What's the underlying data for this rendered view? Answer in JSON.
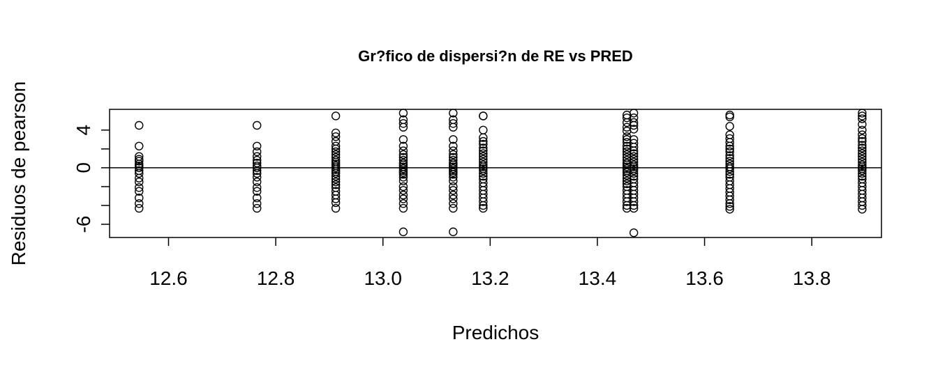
{
  "chart_data": {
    "type": "scatter",
    "title": "Gr?fico de dispersi?n de RE vs PRED",
    "xlabel": "Predichos",
    "ylabel": "Residuos de pearson",
    "xlim": [
      12.49,
      13.93
    ],
    "ylim": [
      -7.4,
      6.2
    ],
    "xticks": [
      12.6,
      12.8,
      13.0,
      13.2,
      13.4,
      13.6,
      13.8
    ],
    "xtick_labels": [
      "12.6",
      "12.8",
      "13.0",
      "13.2",
      "13.4",
      "13.6",
      "13.8"
    ],
    "yticks": [
      -6,
      -4,
      -2,
      0,
      2,
      4
    ],
    "ytick_labels": [
      "-6",
      "",
      "",
      "0",
      "",
      "4"
    ],
    "reference_line_y": 0,
    "marker": "open-circle",
    "series": [
      {
        "groups": [
          {
            "x": 12.545,
            "y": [
              4.5,
              2.3,
              1.2,
              0.9,
              0.7,
              0.4,
              0.2,
              0.0,
              -0.3,
              -0.6,
              -1.1,
              -1.5,
              -2.1,
              -2.5,
              -3.2,
              -3.8,
              -4.3
            ]
          },
          {
            "x": 12.765,
            "y": [
              4.5,
              2.3,
              1.7,
              1.2,
              0.8,
              0.5,
              0.2,
              0.0,
              -0.3,
              -0.6,
              -1.0,
              -1.5,
              -2.1,
              -2.5,
              -3.2,
              -3.8,
              -4.3
            ]
          },
          {
            "x": 12.912,
            "y": [
              5.5,
              3.7,
              3.3,
              2.8,
              2.3,
              2.0,
              1.7,
              1.4,
              1.1,
              0.8,
              0.6,
              0.4,
              0.2,
              0.0,
              -0.2,
              -0.4,
              -0.6,
              -0.9,
              -1.2,
              -1.5,
              -1.8,
              -2.1,
              -2.5,
              -2.9,
              -3.3,
              -3.7,
              -4.3
            ]
          },
          {
            "x": 13.038,
            "y": [
              5.8,
              5.1,
              4.7,
              4.3,
              3.0,
              2.3,
              1.8,
              1.4,
              1.1,
              0.8,
              0.5,
              0.3,
              0.1,
              -0.1,
              -0.3,
              -0.5,
              -0.7,
              -1.0,
              -1.4,
              -2.0,
              -2.4,
              -2.9,
              -3.3,
              -3.8,
              -4.3,
              -6.8
            ]
          },
          {
            "x": 13.131,
            "y": [
              5.8,
              5.1,
              4.7,
              4.3,
              3.0,
              2.3,
              1.8,
              1.4,
              1.1,
              0.8,
              0.5,
              0.3,
              0.1,
              -0.1,
              -0.3,
              -0.5,
              -0.7,
              -1.0,
              -1.4,
              -2.0,
              -2.4,
              -2.9,
              -3.3,
              -3.8,
              -4.3,
              -6.8
            ]
          },
          {
            "x": 13.187,
            "y": [
              5.5,
              5.5,
              4.0,
              3.2,
              2.8,
              2.5,
              2.1,
              1.8,
              1.5,
              1.2,
              0.9,
              0.6,
              0.3,
              0.1,
              -0.1,
              -0.3,
              -0.6,
              -0.9,
              -1.2,
              -1.6,
              -2.0,
              -2.4,
              -2.8,
              -3.2,
              -3.6,
              -4.0,
              -4.3
            ]
          },
          {
            "x": 13.455,
            "y": [
              5.6,
              5.3,
              4.8,
              4.3,
              3.9,
              3.3,
              3.0,
              2.7,
              2.3,
              2.0,
              1.7,
              1.4,
              1.1,
              0.8,
              0.5,
              0.3,
              0.1,
              -0.1,
              -0.3,
              -0.5,
              -0.8,
              -1.1,
              -1.4,
              -1.7,
              -2.0,
              -2.4,
              -2.8,
              -3.2,
              -3.6,
              -4.0,
              -4.3
            ]
          },
          {
            "x": 13.468,
            "y": [
              5.8,
              5.3,
              4.8,
              4.5,
              4.1,
              3.0,
              2.6,
              2.2,
              1.8,
              1.5,
              1.2,
              0.9,
              0.6,
              0.3,
              0.1,
              -0.1,
              -0.3,
              -0.6,
              -0.9,
              -1.2,
              -1.6,
              -2.0,
              -2.4,
              -2.8,
              -3.2,
              -3.6,
              -4.0,
              -4.3,
              -6.9
            ]
          },
          {
            "x": 13.647,
            "y": [
              5.6,
              5.4,
              4.4,
              3.5,
              3.1,
              2.7,
              2.3,
              2.0,
              1.7,
              1.3,
              1.0,
              0.7,
              0.4,
              0.1,
              -0.1,
              -0.4,
              -0.7,
              -1.0,
              -1.4,
              -1.8,
              -2.2,
              -2.6,
              -3.0,
              -3.4,
              -3.8,
              -4.1,
              -4.4
            ]
          },
          {
            "x": 13.894,
            "y": [
              5.8,
              5.5,
              5.2,
              4.6,
              4.0,
              3.5,
              3.1,
              2.8,
              2.4,
              2.1,
              1.8,
              1.5,
              1.2,
              0.9,
              0.6,
              0.3,
              0.1,
              -0.1,
              -0.3,
              -0.6,
              -0.9,
              -1.2,
              -1.6,
              -2.0,
              -2.4,
              -2.8,
              -3.2,
              -3.6,
              -4.0,
              -4.4
            ]
          }
        ]
      }
    ]
  }
}
